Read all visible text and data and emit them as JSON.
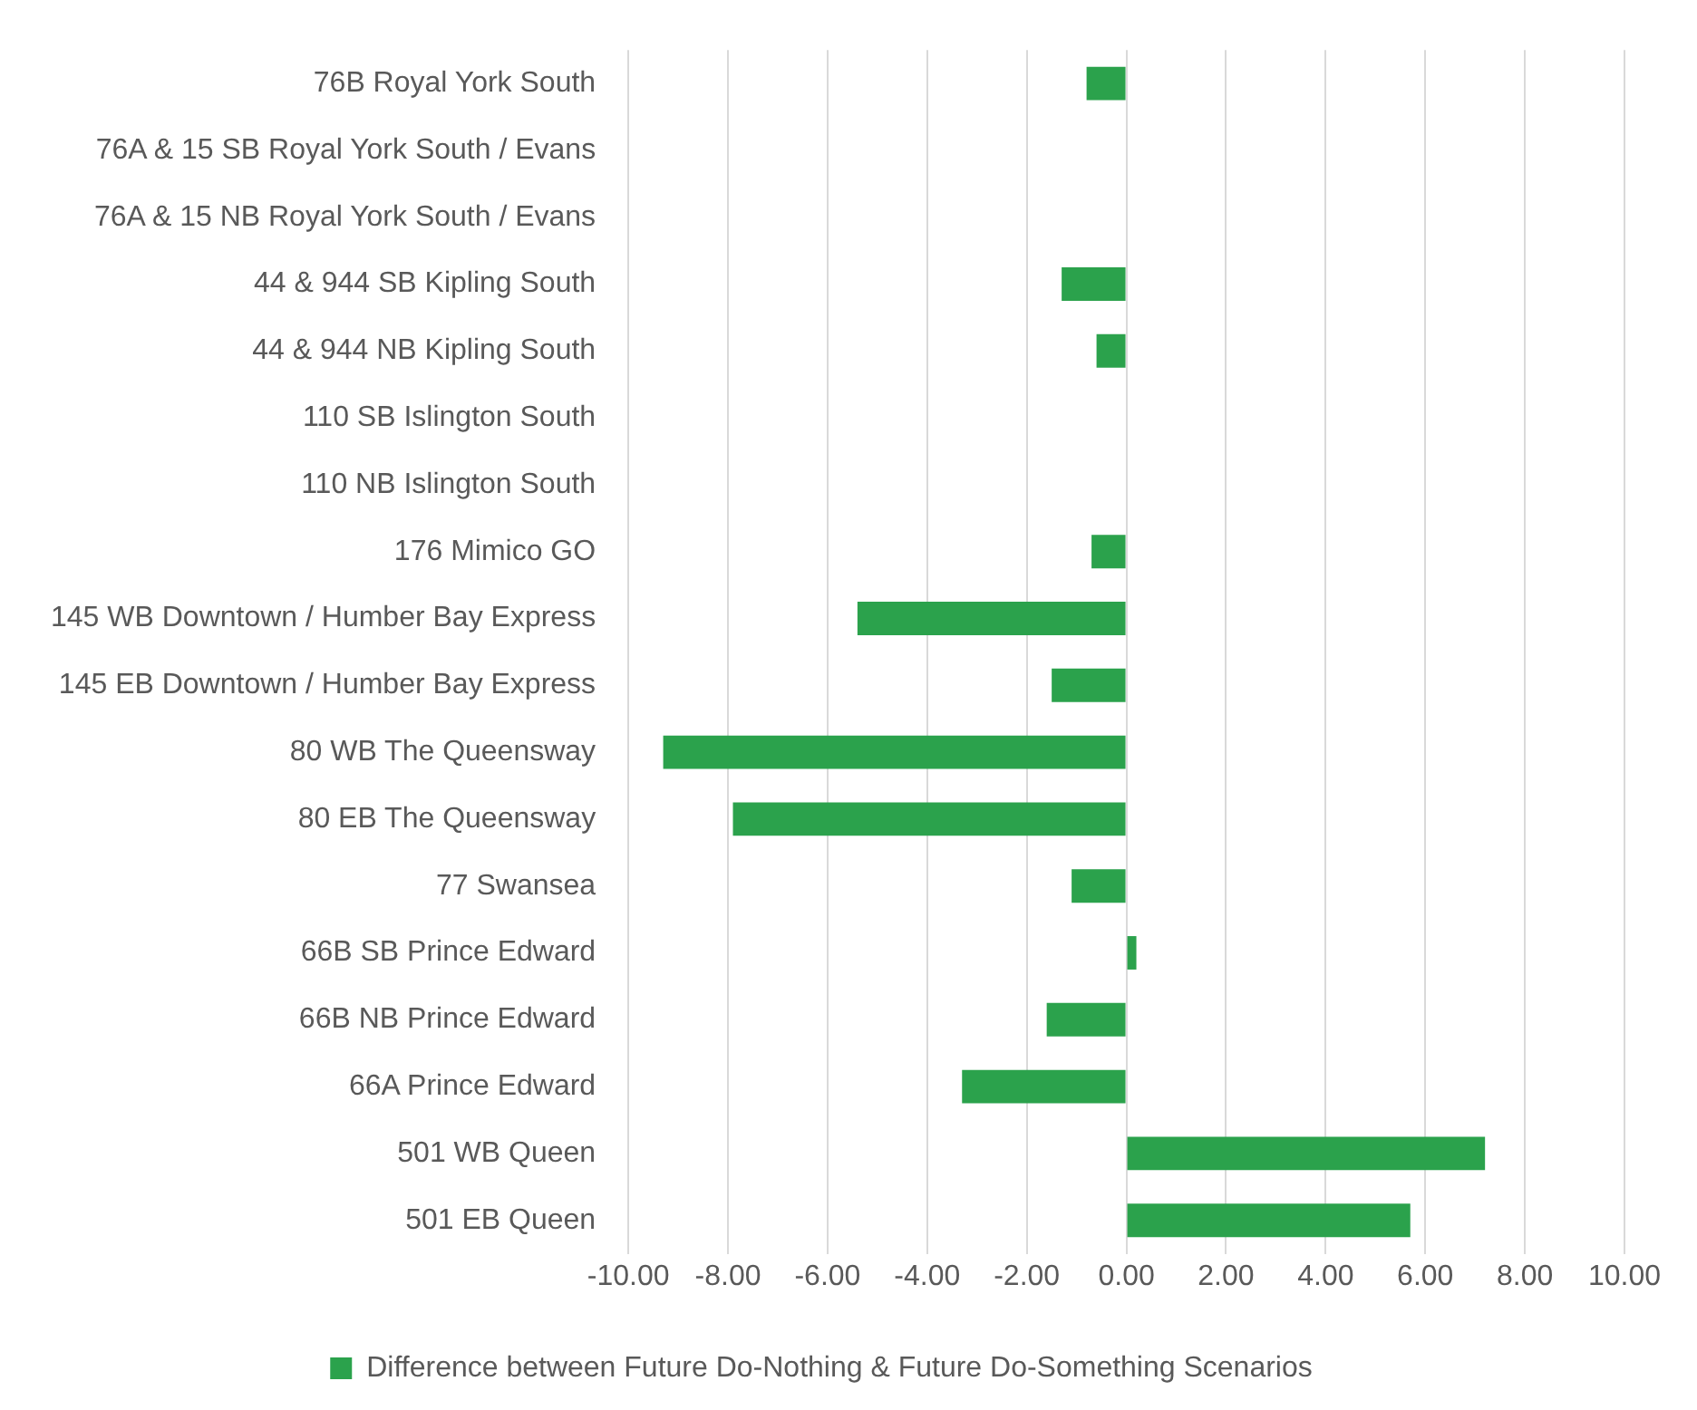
{
  "chart_data": {
    "type": "bar",
    "orientation": "horizontal",
    "categories": [
      "76B Royal York South",
      "76A & 15 SB Royal York South / Evans",
      "76A & 15 NB Royal York South / Evans",
      "44 & 944 SB Kipling South",
      "44 & 944 NB Kipling South",
      "110 SB Islington South",
      "110 NB Islington South",
      "176 Mimico GO",
      "145 WB Downtown / Humber Bay Express",
      "145 EB Downtown / Humber Bay Express",
      "80 WB The Queensway",
      "80 EB The Queensway",
      "77 Swansea",
      "66B SB Prince Edward",
      "66B NB Prince Edward",
      "66A Prince Edward",
      "501 WB Queen",
      "501 EB Queen"
    ],
    "series": [
      {
        "name": "Difference between Future Do-Nothing & Future Do-Something Scenarios",
        "color": "#2ba24c",
        "values": [
          -0.8,
          null,
          null,
          -1.3,
          -0.6,
          null,
          null,
          -0.7,
          -5.4,
          -1.5,
          -9.3,
          -7.9,
          -1.1,
          0.2,
          -1.6,
          -3.3,
          7.2,
          5.7
        ]
      }
    ],
    "xlim": [
      -10,
      10
    ],
    "xticks": [
      {
        "value": -10,
        "label": "-10.00"
      },
      {
        "value": -8,
        "label": "-8.00"
      },
      {
        "value": -6,
        "label": "-6.00"
      },
      {
        "value": -4,
        "label": "-4.00"
      },
      {
        "value": -2,
        "label": "-2.00"
      },
      {
        "value": 0,
        "label": "0.00"
      },
      {
        "value": 2,
        "label": "2.00"
      },
      {
        "value": 4,
        "label": "4.00"
      },
      {
        "value": 6,
        "label": "6.00"
      },
      {
        "value": 8,
        "label": "8.00"
      },
      {
        "value": 10,
        "label": "10.00"
      }
    ],
    "grid": "x",
    "legend": "bottom"
  }
}
